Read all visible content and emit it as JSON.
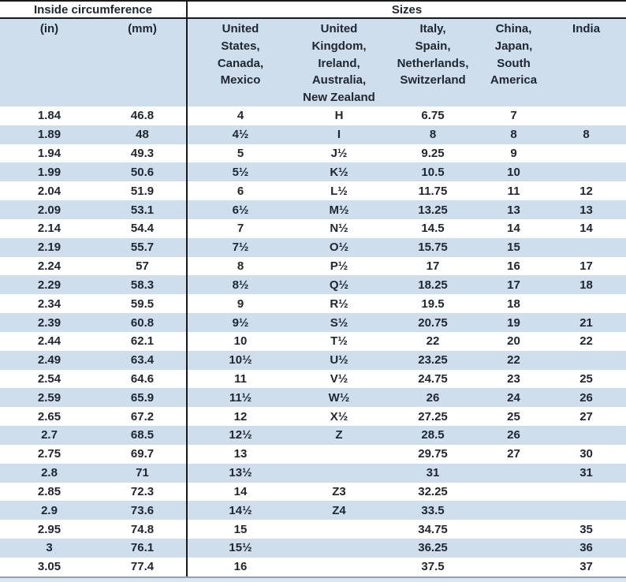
{
  "chart_data": {
    "type": "table",
    "group_headers": [
      {
        "label": "Inside circumference",
        "colspan": 2
      },
      {
        "label": "Sizes",
        "colspan": 5
      }
    ],
    "columns": [
      "(in)",
      "(mm)",
      "United\nStates,\nCanada,\nMexico",
      "United\nKingdom,\nIreland,\nAustralia,\nNew Zealand",
      "Italy,\nSpain,\nNetherlands,\nSwitzerland",
      "China,\nJapan,\nSouth\nAmerica",
      "India"
    ],
    "rows": [
      [
        "1.84",
        "46.8",
        "4",
        "H",
        "6.75",
        "7",
        ""
      ],
      [
        "1.89",
        "48",
        "4½",
        "I",
        "8",
        "8",
        "8"
      ],
      [
        "1.94",
        "49.3",
        "5",
        "J½",
        "9.25",
        "9",
        ""
      ],
      [
        "1.99",
        "50.6",
        "5½",
        "K½",
        "10.5",
        "10",
        ""
      ],
      [
        "2.04",
        "51.9",
        "6",
        "L½",
        "11.75",
        "11",
        "12"
      ],
      [
        "2.09",
        "53.1",
        "6½",
        "M½",
        "13.25",
        "13",
        "13"
      ],
      [
        "2.14",
        "54.4",
        "7",
        "N½",
        "14.5",
        "14",
        "14"
      ],
      [
        "2.19",
        "55.7",
        "7½",
        "O½",
        "15.75",
        "15",
        ""
      ],
      [
        "2.24",
        "57",
        "8",
        "P½",
        "17",
        "16",
        "17"
      ],
      [
        "2.29",
        "58.3",
        "8½",
        "Q½",
        "18.25",
        "17",
        "18"
      ],
      [
        "2.34",
        "59.5",
        "9",
        "R½",
        "19.5",
        "18",
        ""
      ],
      [
        "2.39",
        "60.8",
        "9½",
        "S½",
        "20.75",
        "19",
        "21"
      ],
      [
        "2.44",
        "62.1",
        "10",
        "T½",
        "22",
        "20",
        "22"
      ],
      [
        "2.49",
        "63.4",
        "10½",
        "U½",
        "23.25",
        "22",
        ""
      ],
      [
        "2.54",
        "64.6",
        "11",
        "V½",
        "24.75",
        "23",
        "25"
      ],
      [
        "2.59",
        "65.9",
        "11½",
        "W½",
        "26",
        "24",
        "26"
      ],
      [
        "2.65",
        "67.2",
        "12",
        "X½",
        "27.25",
        "25",
        "27"
      ],
      [
        "2.7",
        "68.5",
        "12½",
        "Z",
        "28.5",
        "26",
        ""
      ],
      [
        "2.75",
        "69.7",
        "13",
        "",
        "29.75",
        "27",
        "30"
      ],
      [
        "2.8",
        "71",
        "13½",
        "",
        "31",
        "",
        "31"
      ],
      [
        "2.85",
        "72.3",
        "14",
        "Z3",
        "32.25",
        "",
        ""
      ],
      [
        "2.9",
        "73.6",
        "14½",
        "Z4",
        "33.5",
        "",
        ""
      ],
      [
        "2.95",
        "74.8",
        "15",
        "",
        "34.75",
        "",
        "35"
      ],
      [
        "3",
        "76.1",
        "15½",
        "",
        "36.25",
        "",
        "36"
      ],
      [
        "3.05",
        "77.4",
        "16",
        "",
        "37.5",
        "",
        "37"
      ]
    ]
  },
  "colors": {
    "stripe_blue": "#cfdeed",
    "header_divider": "#1a1a1a",
    "bottom_line": "#93a2b1",
    "bottom_strip": "#dce6f0",
    "text": "#1f2630"
  }
}
